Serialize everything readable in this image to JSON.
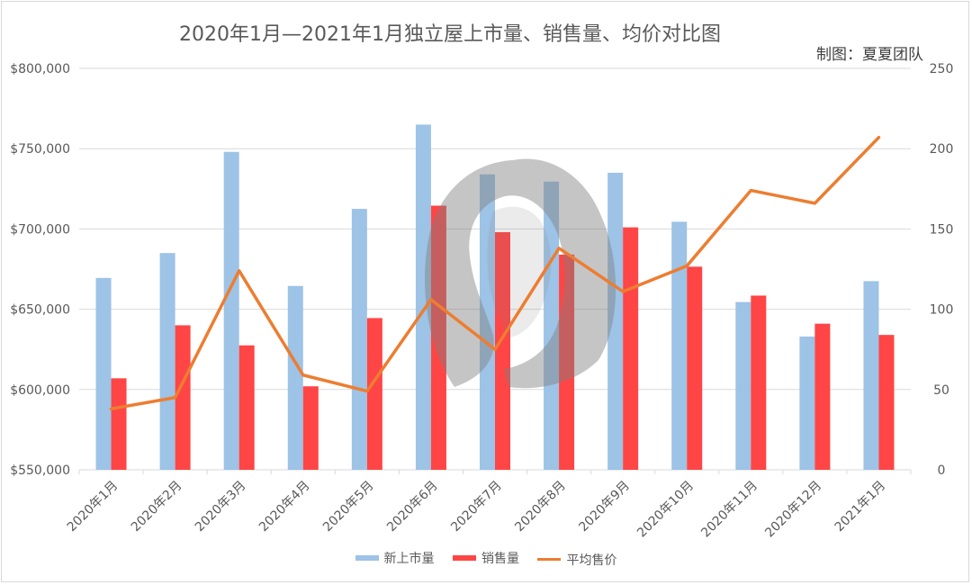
{
  "chart_data": {
    "type": "bar",
    "title": "2020年1月—2021年1月独立屋上市量、销售量、均价对比图",
    "credit": "制图：夏夏团队",
    "categories": [
      "2020年1月",
      "2020年2月",
      "2020年3月",
      "2020年4月",
      "2020年5月",
      "2020年6月",
      "2020年7月",
      "2020年8月",
      "2020年9月",
      "2020年10月",
      "2020年11月",
      "2020年12月",
      "2021年1月"
    ],
    "y_left": {
      "ticks": [
        550000,
        600000,
        650000,
        700000,
        750000,
        800000
      ],
      "tick_labels": [
        "$550,000",
        "$600,000",
        "$650,000",
        "$700,000",
        "$750,000",
        "$800,000"
      ],
      "range": [
        550000,
        800000
      ]
    },
    "y_right": {
      "ticks": [
        0,
        50,
        100,
        150,
        200,
        250
      ],
      "tick_labels": [
        "0",
        "50",
        "100",
        "150",
        "200",
        "250"
      ],
      "range": [
        0,
        250
      ]
    },
    "series": [
      {
        "name": "新上市量",
        "kind": "bar",
        "axis": "left",
        "color": "#9dc3e6",
        "values": [
          669500,
          685000,
          748000,
          664500,
          712500,
          765000,
          734000,
          729500,
          735000,
          704500,
          654500,
          633000,
          667500
        ]
      },
      {
        "name": "销售量",
        "kind": "bar",
        "axis": "left",
        "color": "#ff4545",
        "values": [
          607000,
          640000,
          627500,
          602000,
          644500,
          714500,
          698000,
          684000,
          701000,
          676500,
          658500,
          641000,
          634000
        ]
      },
      {
        "name": "平均售价",
        "kind": "line",
        "axis": "right",
        "color": "#ed7d31",
        "values": [
          38,
          45,
          124,
          59,
          49,
          106,
          75,
          138,
          111,
          127,
          174,
          166,
          207
        ]
      }
    ],
    "grid": true,
    "legend_position": "bottom"
  },
  "watermark": {
    "name": "portrait-watermark",
    "fill": "#7f7f7f",
    "opacity": 0.45
  }
}
